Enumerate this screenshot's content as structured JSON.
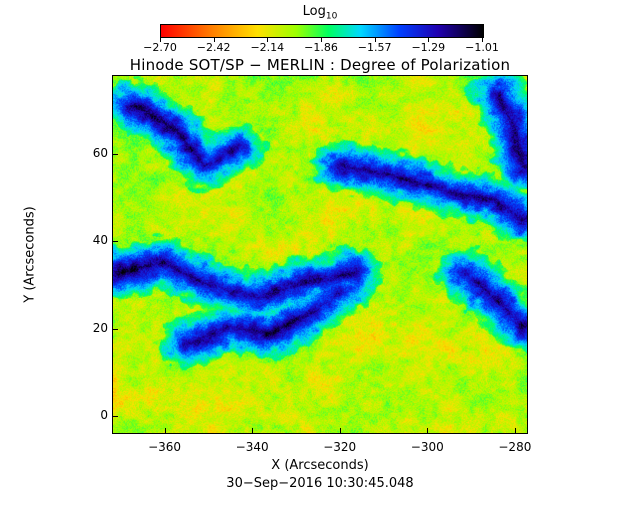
{
  "colorbar": {
    "title_base": "Log",
    "title_sub": "10",
    "tick_labels": [
      "−2.70",
      "−2.42",
      "−2.14",
      "−1.86",
      "−1.57",
      "−1.29",
      "−1.01"
    ],
    "colors": [
      "#ff0000",
      "#ff8000",
      "#ffe000",
      "#9cff00",
      "#00ff60",
      "#00d8ff",
      "#0040ff",
      "#2000b0",
      "#000000"
    ]
  },
  "title": "Hinode SOT/SP − MERLIN : Degree of Polarization",
  "x_axis": {
    "label": "X (Arcseconds)",
    "range": [
      -372,
      -277
    ],
    "ticks": [
      -360,
      -340,
      -320,
      -300,
      -280
    ],
    "tick_labels": [
      "−360",
      "−340",
      "−320",
      "−300",
      "−280"
    ]
  },
  "y_axis": {
    "label": "Y (Arcseconds)",
    "range": [
      -4,
      78
    ],
    "ticks": [
      0,
      20,
      40,
      60
    ],
    "tick_labels": [
      "0",
      "20",
      "40",
      "60"
    ]
  },
  "timestamp": "30−Sep−2016 10:30:45.048"
}
